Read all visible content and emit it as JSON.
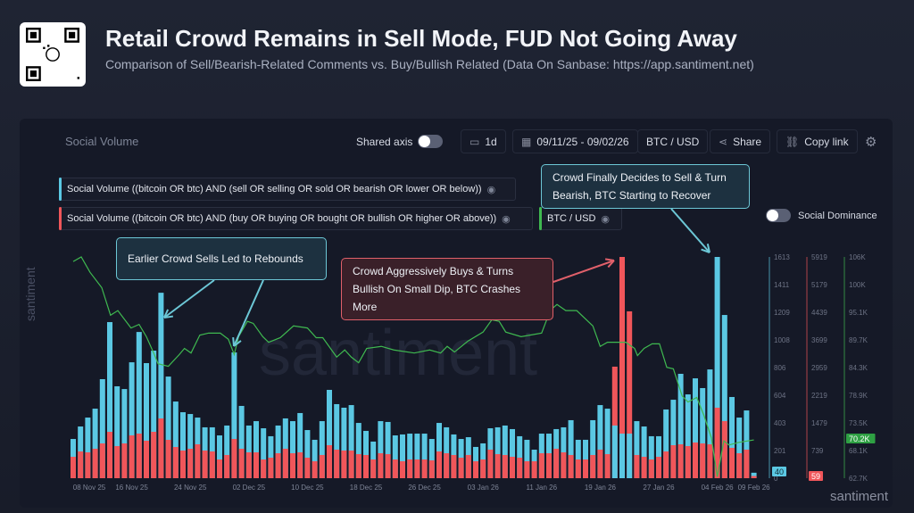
{
  "header": {
    "title": "Retail Crowd Remains in Sell Mode, FUD Not Going Away",
    "subtitle": "Comparison of Sell/Bearish-Related Comments vs. Buy/Bullish Related (Data On Sanbase: https://app.santiment.net)"
  },
  "toolbar": {
    "panel_title": "Social Volume",
    "shared_axis": "Shared axis",
    "interval": "1d",
    "date_range": "09/11/25 - 09/02/26",
    "pair": "BTC / USD",
    "share": "Share",
    "copy_link": "Copy link"
  },
  "legend": [
    {
      "label": "Social Volume ((bitcoin OR btc) AND (sell OR selling OR sold OR bearish OR lower OR below))",
      "color": "#5bc8e3"
    },
    {
      "label": "Social Volume ((bitcoin OR btc) AND (buy OR buying OR bought OR bullish OR higher OR above))",
      "color": "#f0565a"
    },
    {
      "label": "BTC / USD",
      "color": "#3fb950"
    }
  ],
  "social_dominance": "Social Dominance",
  "annotations": {
    "a1": "Earlier Crowd Sells Led to Rebounds",
    "a2_l1": "Crowd Aggressively Buys & Turns",
    "a2_l2": "Bullish On Small Dip, BTC Crashes More",
    "a3_l1": "Crowd Finally Decides to Sell & Turn",
    "a3_l2": "Bearish, BTC Starting to Recover"
  },
  "watermark": "santiment",
  "chart_data": {
    "type": "bar",
    "title": "Social Volume",
    "x_labels": [
      {
        "i": 0,
        "t": "08 Nov 25"
      },
      {
        "i": 8,
        "t": "16 Nov 25"
      },
      {
        "i": 16,
        "t": "24 Nov 25"
      },
      {
        "i": 24,
        "t": "02 Dec 25"
      },
      {
        "i": 32,
        "t": "10 Dec 25"
      },
      {
        "i": 40,
        "t": "18 Dec 25"
      },
      {
        "i": 48,
        "t": "26 Dec 25"
      },
      {
        "i": 56,
        "t": "03 Jan 26"
      },
      {
        "i": 64,
        "t": "11 Jan 26"
      },
      {
        "i": 72,
        "t": "19 Jan 26"
      },
      {
        "i": 80,
        "t": "27 Jan 26"
      },
      {
        "i": 88,
        "t": "04 Feb 26"
      },
      {
        "i": 93,
        "t": "09 Feb 26"
      }
    ],
    "series": [
      {
        "name": "Sell/Bearish social volume",
        "color": "#5bc8e3",
        "ylim": [
          0,
          1613
        ],
        "ticks": [
          "1613",
          "1411",
          "1209",
          "1008",
          "806",
          "604",
          "403",
          "201",
          "0"
        ],
        "last": "40",
        "values": [
          286,
          377,
          442,
          507,
          722,
          1138,
          670,
          650,
          845,
          1066,
          839,
          930,
          1352,
          741,
          559,
          481,
          468,
          442,
          371,
          371,
          312,
          384,
          917,
          527,
          384,
          416,
          364,
          306,
          384,
          436,
          416,
          475,
          351,
          280,
          416,
          644,
          540,
          514,
          533,
          403,
          345,
          267,
          416,
          410,
          312,
          319,
          325,
          325,
          325,
          286,
          403,
          371,
          319,
          286,
          299,
          228,
          254,
          364,
          371,
          384,
          358,
          306,
          280,
          208,
          325,
          325,
          358,
          371,
          423,
          280,
          280,
          423,
          533,
          507,
          384,
          325,
          325,
          416,
          377,
          306,
          306,
          501,
          572,
          761,
          611,
          728,
          657,
          793,
          1613,
          1190,
          592,
          442,
          494,
          40
        ]
      },
      {
        "name": "Buy/Bullish social volume",
        "color": "#f0565a",
        "ylim": [
          0,
          5919
        ],
        "ticks": [
          "5919",
          "5179",
          "4439",
          "3699",
          "2959",
          "2219",
          "1479",
          "739",
          ""
        ],
        "last": "59",
        "values": [
          573,
          716,
          692,
          788,
          931,
          1241,
          859,
          931,
          1146,
          1194,
          1003,
          1241,
          1599,
          1026,
          835,
          740,
          788,
          907,
          740,
          716,
          501,
          621,
          1050,
          788,
          692,
          692,
          501,
          549,
          668,
          788,
          668,
          692,
          549,
          454,
          621,
          883,
          764,
          740,
          740,
          644,
          621,
          501,
          668,
          644,
          501,
          454,
          501,
          501,
          501,
          477,
          716,
          668,
          621,
          549,
          621,
          454,
          501,
          764,
          644,
          621,
          573,
          549,
          454,
          454,
          668,
          668,
          788,
          692,
          621,
          501,
          501,
          621,
          764,
          644,
          2984,
          5919,
          4464,
          621,
          573,
          501,
          573,
          716,
          883,
          907,
          859,
          955,
          931,
          907,
          1886,
          1528,
          812,
          668,
          764,
          59
        ]
      },
      {
        "name": "BTC / USD",
        "color": "#3fb950",
        "ylim": [
          62.7,
          106
        ],
        "unit": "K",
        "ticks": [
          "106K",
          "100K",
          "95.1K",
          "89.7K",
          "84.3K",
          "78.9K",
          "73.5K",
          "68.1K",
          "62.7K"
        ],
        "last": "70.2K",
        "points": [
          [
            0,
            105.1
          ],
          [
            1.1,
            106
          ],
          [
            2.3,
            103
          ],
          [
            3.9,
            100
          ],
          [
            5.1,
            94.6
          ],
          [
            6.1,
            95.5
          ],
          [
            7.9,
            92.1
          ],
          [
            9,
            92.8
          ],
          [
            10,
            90.4
          ],
          [
            11,
            87.2
          ],
          [
            11.6,
            85.1
          ],
          [
            13,
            84.6
          ],
          [
            14.5,
            86.9
          ],
          [
            15.2,
            88.1
          ],
          [
            16.1,
            87.2
          ],
          [
            17.3,
            90.7
          ],
          [
            18.5,
            91.1
          ],
          [
            20.1,
            91.1
          ],
          [
            21.2,
            89.9
          ],
          [
            22,
            86.9
          ],
          [
            22.6,
            90.4
          ],
          [
            23.8,
            93.4
          ],
          [
            24.6,
            93
          ],
          [
            25.9,
            90.4
          ],
          [
            26.7,
            89.3
          ],
          [
            28.3,
            90.2
          ],
          [
            30.1,
            92.5
          ],
          [
            32,
            92.1
          ],
          [
            33.2,
            90.2
          ],
          [
            34.1,
            90.2
          ],
          [
            36,
            86.4
          ],
          [
            37.1,
            87.8
          ],
          [
            38,
            86.4
          ],
          [
            39,
            85.3
          ],
          [
            40.1,
            88.1
          ],
          [
            42.1,
            88.5
          ],
          [
            43.8,
            87.8
          ],
          [
            46.6,
            87.2
          ],
          [
            48.7,
            87.8
          ],
          [
            50.2,
            87.2
          ],
          [
            51.1,
            88.5
          ],
          [
            52.1,
            87.4
          ],
          [
            53.9,
            89.5
          ],
          [
            56,
            91.3
          ],
          [
            57.2,
            93.7
          ],
          [
            58.2,
            93.4
          ],
          [
            59.1,
            91.3
          ],
          [
            61.2,
            90.4
          ],
          [
            62.4,
            90.7
          ],
          [
            64,
            91.1
          ],
          [
            65.2,
            95.6
          ],
          [
            66.1,
            96.7
          ],
          [
            67.3,
            95.5
          ],
          [
            68.8,
            95.5
          ],
          [
            71,
            92.5
          ],
          [
            72,
            88.5
          ],
          [
            73,
            89.3
          ],
          [
            75.5,
            89.3
          ],
          [
            76.7,
            88.1
          ],
          [
            77.1,
            86.7
          ],
          [
            78,
            88.1
          ],
          [
            79.1,
            89
          ],
          [
            80.1,
            89
          ],
          [
            81.1,
            84.4
          ],
          [
            82,
            84.1
          ],
          [
            83.2,
            78.8
          ],
          [
            84,
            77.6
          ],
          [
            85.2,
            78.5
          ],
          [
            86.2,
            74.9
          ],
          [
            87.2,
            70.6
          ],
          [
            88,
            63
          ],
          [
            88.9,
            70
          ],
          [
            89.6,
            69.2
          ],
          [
            90.9,
            69.7
          ],
          [
            93,
            70.2
          ]
        ]
      }
    ]
  }
}
